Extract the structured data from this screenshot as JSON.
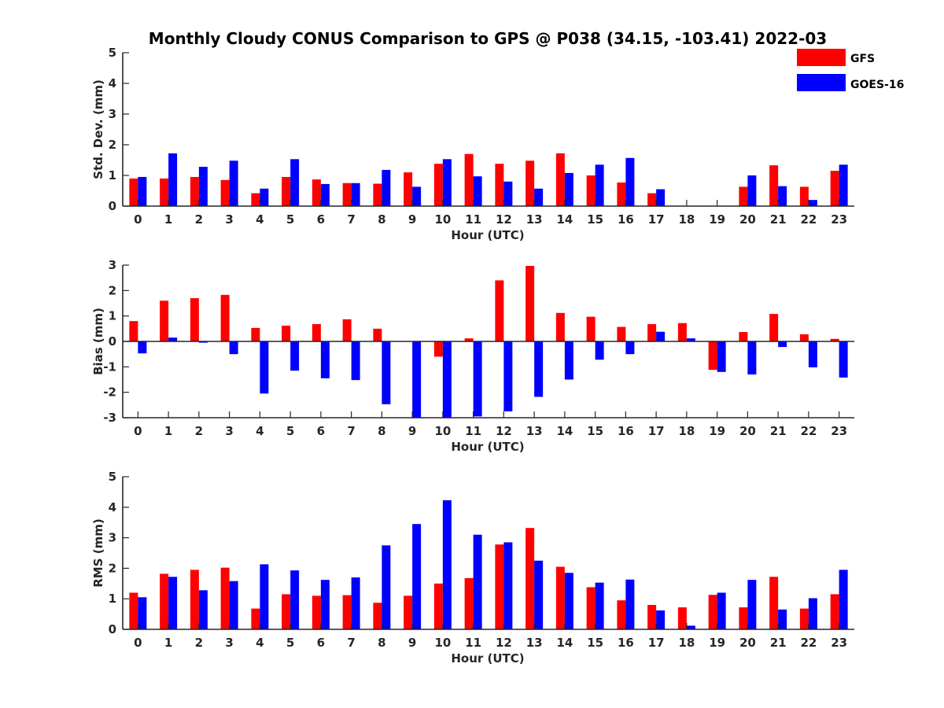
{
  "title": "Monthly Cloudy CONUS Comparison to GPS @ P038 (34.15, -103.41) 2022-03",
  "legend": [
    {
      "name": "GFS",
      "color": "#ff0000"
    },
    {
      "name": "GOES-16",
      "color": "#0000ff"
    }
  ],
  "chart_data": [
    {
      "type": "bar",
      "categories": [
        "0",
        "1",
        "2",
        "3",
        "4",
        "5",
        "6",
        "7",
        "8",
        "9",
        "10",
        "11",
        "12",
        "13",
        "14",
        "15",
        "16",
        "17",
        "18",
        "19",
        "20",
        "21",
        "22",
        "23"
      ],
      "xlabel": "Hour (UTC)",
      "ylabel": "Std. Dev. (mm)",
      "ylim": [
        0,
        5
      ],
      "yticks": [
        "0",
        "1",
        "2",
        "3",
        "4",
        "5"
      ],
      "series": [
        {
          "name": "GFS",
          "color": "#ff0000",
          "values": [
            0.9,
            0.9,
            0.95,
            0.85,
            0.42,
            0.95,
            0.87,
            0.75,
            0.73,
            1.1,
            1.38,
            1.7,
            1.38,
            1.48,
            1.72,
            1.0,
            0.77,
            0.42,
            0,
            0,
            0.63,
            1.33,
            0.63,
            1.15
          ]
        },
        {
          "name": "GOES-16",
          "color": "#0000ff",
          "values": [
            0.95,
            1.72,
            1.28,
            1.48,
            0.57,
            1.53,
            0.72,
            0.75,
            1.18,
            0.63,
            1.53,
            0.97,
            0.8,
            0.57,
            1.08,
            1.35,
            1.57,
            0.55,
            0,
            0,
            1.0,
            0.65,
            0.2,
            1.35
          ]
        }
      ]
    },
    {
      "type": "bar",
      "categories": [
        "0",
        "1",
        "2",
        "3",
        "4",
        "5",
        "6",
        "7",
        "8",
        "9",
        "10",
        "11",
        "12",
        "13",
        "14",
        "15",
        "16",
        "17",
        "18",
        "19",
        "20",
        "21",
        "22",
        "23"
      ],
      "xlabel": "Hour (UTC)",
      "ylabel": "Bias (mm)",
      "ylim": [
        -3,
        3
      ],
      "yticks": [
        "-3",
        "-2",
        "-1",
        "0",
        "1",
        "2",
        "3"
      ],
      "series": [
        {
          "name": "GFS",
          "color": "#ff0000",
          "values": [
            0.8,
            1.6,
            1.7,
            1.83,
            0.53,
            0.62,
            0.68,
            0.87,
            0.5,
            0,
            -0.6,
            0.12,
            2.4,
            2.97,
            1.12,
            0.97,
            0.57,
            0.68,
            0.72,
            -1.12,
            0.37,
            1.08,
            0.28,
            0.1
          ]
        },
        {
          "name": "GOES-16",
          "color": "#0000ff",
          "values": [
            -0.47,
            0.15,
            -0.05,
            -0.5,
            -2.05,
            -1.15,
            -1.45,
            -1.52,
            -2.47,
            -3.0,
            -3.0,
            -2.95,
            -2.75,
            -2.18,
            -1.5,
            -0.72,
            -0.5,
            0.38,
            0.12,
            -1.2,
            -1.3,
            -0.22,
            -1.02,
            -1.42
          ]
        }
      ]
    },
    {
      "type": "bar",
      "categories": [
        "0",
        "1",
        "2",
        "3",
        "4",
        "5",
        "6",
        "7",
        "8",
        "9",
        "10",
        "11",
        "12",
        "13",
        "14",
        "15",
        "16",
        "17",
        "18",
        "19",
        "20",
        "21",
        "22",
        "23"
      ],
      "xlabel": "Hour (UTC)",
      "ylabel": "RMS (mm)",
      "ylim": [
        0,
        5
      ],
      "yticks": [
        "0",
        "1",
        "2",
        "3",
        "4",
        "5"
      ],
      "series": [
        {
          "name": "GFS",
          "color": "#ff0000",
          "values": [
            1.2,
            1.82,
            1.95,
            2.02,
            0.68,
            1.15,
            1.1,
            1.12,
            0.87,
            1.1,
            1.5,
            1.68,
            2.78,
            3.32,
            2.05,
            1.38,
            0.95,
            0.8,
            0.72,
            1.13,
            0.72,
            1.72,
            0.68,
            1.15
          ]
        },
        {
          "name": "GOES-16",
          "color": "#0000ff",
          "values": [
            1.05,
            1.72,
            1.28,
            1.58,
            2.13,
            1.93,
            1.62,
            1.7,
            2.75,
            3.45,
            4.23,
            3.1,
            2.85,
            2.25,
            1.85,
            1.53,
            1.63,
            0.62,
            0.12,
            1.2,
            1.62,
            0.65,
            1.02,
            1.95
          ]
        }
      ]
    }
  ]
}
